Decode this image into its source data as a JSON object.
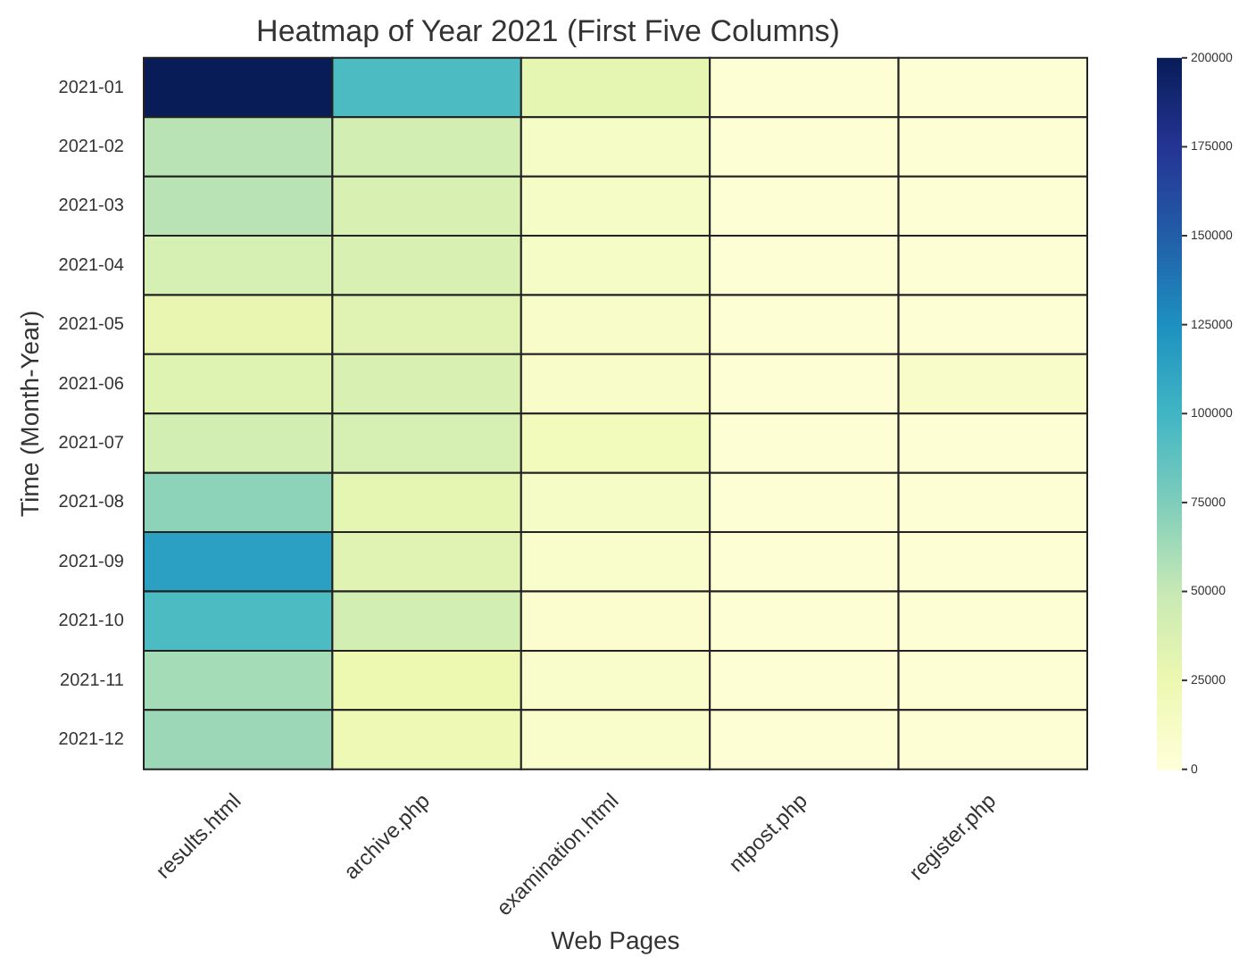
{
  "chart_data": {
    "type": "heatmap",
    "title": "Heatmap of Year 2021 (First Five Columns)",
    "xlabel": "Web Pages",
    "ylabel": "Time (Month-Year)",
    "categories": [
      "results.html",
      "archive.php",
      "examination.html",
      "ntpost.php",
      "register.php"
    ],
    "y_categories": [
      "2021-01",
      "2021-02",
      "2021-03",
      "2021-04",
      "2021-05",
      "2021-06",
      "2021-07",
      "2021-08",
      "2021-09",
      "2021-10",
      "2021-11",
      "2021-12"
    ],
    "cells": [
      [
        200000,
        95000,
        30000,
        3000,
        3000
      ],
      [
        55000,
        42000,
        12000,
        3000,
        3000
      ],
      [
        55000,
        38000,
        12000,
        3000,
        3000
      ],
      [
        40000,
        38000,
        12000,
        3000,
        3000
      ],
      [
        28000,
        33000,
        10000,
        3000,
        3000
      ],
      [
        35000,
        38000,
        10000,
        3000,
        10000
      ],
      [
        42000,
        40000,
        18000,
        3000,
        3000
      ],
      [
        70000,
        30000,
        12000,
        3000,
        3000
      ],
      [
        115000,
        33000,
        8000,
        3000,
        3000
      ],
      [
        95000,
        42000,
        6000,
        3000,
        3000
      ],
      [
        62000,
        25000,
        8000,
        3000,
        3000
      ],
      [
        65000,
        22000,
        8000,
        3000,
        3000
      ]
    ],
    "clim": [
      0,
      200000
    ],
    "cticks": [
      0,
      25000,
      50000,
      75000,
      100000,
      125000,
      150000,
      175000,
      200000
    ]
  }
}
